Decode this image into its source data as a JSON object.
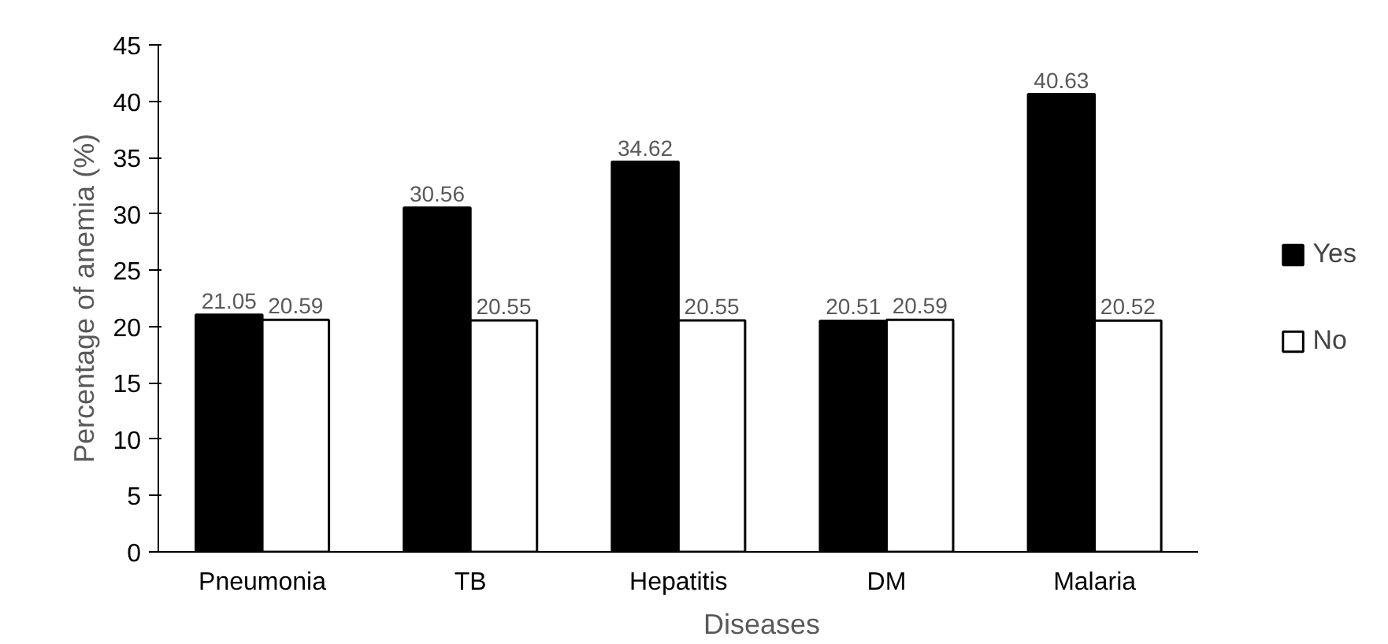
{
  "chart_data": {
    "type": "bar",
    "xlabel": "Diseases",
    "ylabel": "Percentage of anemia (%)",
    "categories": [
      "Pneumonia",
      "TB",
      "Hepatitis",
      "DM",
      "Malaria"
    ],
    "series": [
      {
        "name": "Yes",
        "color": "#000000",
        "values": [
          21.05,
          30.56,
          34.62,
          20.51,
          40.63
        ]
      },
      {
        "name": "No",
        "color": "#ffffff",
        "values": [
          20.59,
          20.55,
          20.55,
          20.59,
          20.52
        ]
      }
    ],
    "ylim": [
      0,
      45
    ],
    "yticks": [
      0,
      5,
      10,
      15,
      20,
      25,
      30,
      35,
      40,
      45
    ],
    "data_labels": true,
    "grid": false,
    "legend": "right"
  }
}
